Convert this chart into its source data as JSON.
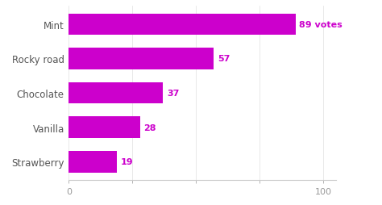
{
  "categories": [
    "Strawberry",
    "Vanilla",
    "Chocolate",
    "Rocky road",
    "Mint"
  ],
  "values": [
    19,
    28,
    37,
    57,
    89
  ],
  "bar_color": "#cc00cc",
  "label_color": "#cc00cc",
  "label_fontsize": 8,
  "category_fontsize": 8.5,
  "tick_fontsize": 8,
  "xlim": [
    0,
    105
  ],
  "xticks": [
    0,
    25,
    50,
    75,
    100
  ],
  "xticklabels": [
    "0",
    "",
    "",
    "",
    "100"
  ],
  "special_label": "89 votes",
  "special_index": 4,
  "background_color": "#ffffff",
  "bar_height": 0.62,
  "spine_color": "#cccccc",
  "tick_color": "#999999",
  "ytick_color": "#555555"
}
